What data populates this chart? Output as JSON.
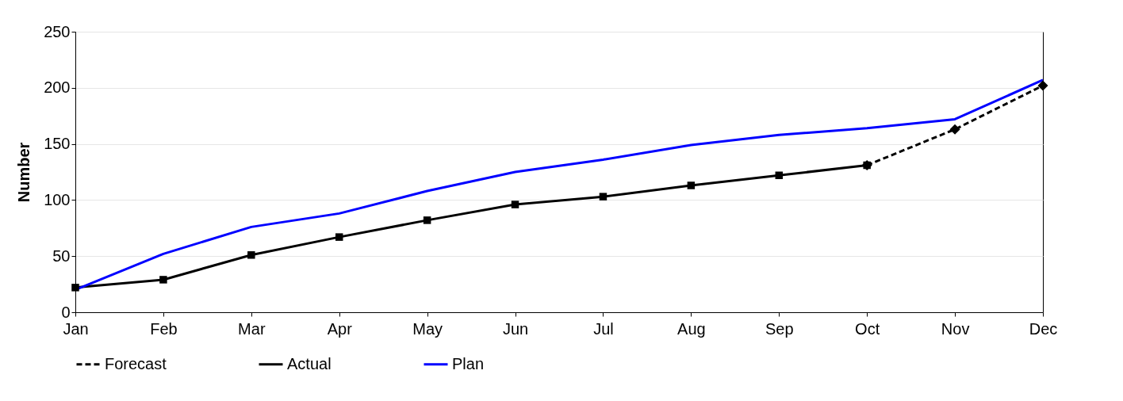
{
  "chart_data": {
    "type": "line",
    "ylabel": "Number",
    "categories": [
      "Jan",
      "Feb",
      "Mar",
      "Apr",
      "May",
      "Jun",
      "Jul",
      "Aug",
      "Sep",
      "Oct",
      "Nov",
      "Dec"
    ],
    "ylim": [
      0,
      250
    ],
    "yticks": [
      0,
      50,
      100,
      150,
      200,
      250
    ],
    "grid": "y",
    "legend": "bottom",
    "series": [
      {
        "name": "Forecast",
        "color": "#000000",
        "line_style": "dashed",
        "marker": "diamond",
        "values": [
          null,
          null,
          null,
          null,
          null,
          null,
          null,
          null,
          null,
          131,
          163,
          202
        ]
      },
      {
        "name": "Actual",
        "color": "#000000",
        "line_style": "solid",
        "marker": "square",
        "values": [
          22,
          29,
          51,
          67,
          82,
          96,
          103,
          113,
          122,
          131,
          null,
          null
        ]
      },
      {
        "name": "Plan",
        "color": "#0000ff",
        "line_style": "solid",
        "marker": "none",
        "values": [
          20,
          52,
          76,
          88,
          108,
          125,
          136,
          149,
          158,
          164,
          172,
          207
        ]
      }
    ]
  }
}
